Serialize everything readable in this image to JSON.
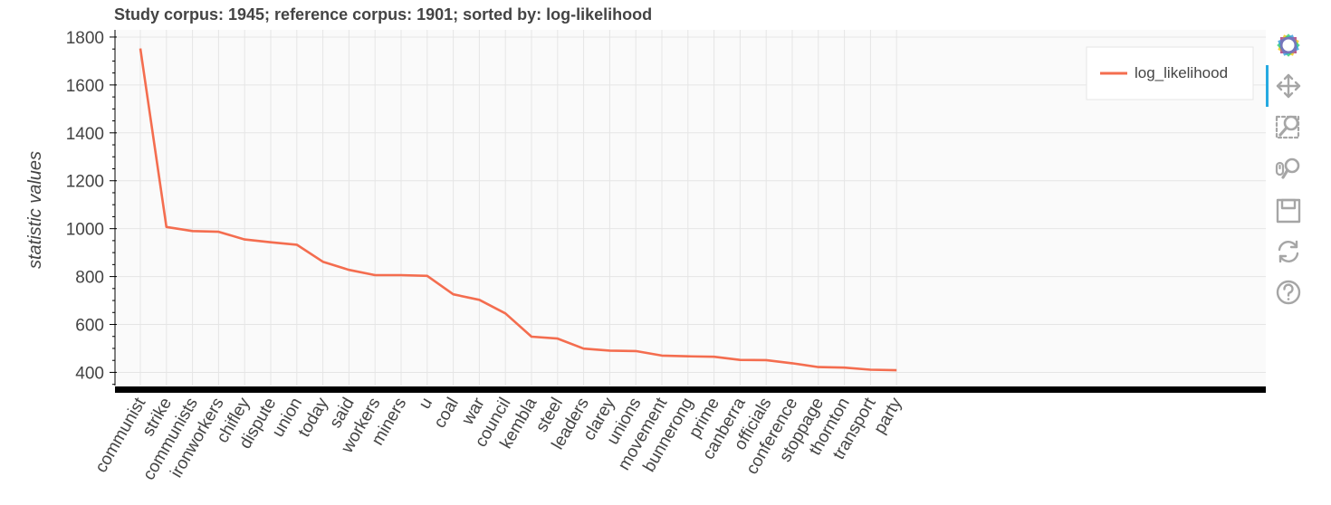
{
  "chart_data": {
    "type": "line",
    "title": "Study corpus: 1945; reference corpus: 1901; sorted by: log-likelihood",
    "xlabel": "",
    "ylabel": "statistic values",
    "ylim": [
      345,
      1830
    ],
    "yticks": [
      400,
      600,
      800,
      1000,
      1200,
      1400,
      1600,
      1800
    ],
    "grid": true,
    "legend_position": "top-right",
    "categories": [
      "communist",
      "strike",
      "communists",
      "ironworkers",
      "chifley",
      "dispute",
      "union",
      "today",
      "said",
      "workers",
      "miners",
      "u",
      "coal",
      "war",
      "council",
      "kembla",
      "steel",
      "leaders",
      "clarey",
      "unions",
      "movement",
      "bunnerong",
      "prime",
      "canberra",
      "officials",
      "conference",
      "stoppage",
      "thornton",
      "transport",
      "party"
    ],
    "series": [
      {
        "name": "log_likelihood",
        "color": "#f46d4f",
        "values": [
          1752,
          1007,
          990,
          987,
          955,
          943,
          933,
          862,
          828,
          806,
          806,
          803,
          726,
          703,
          646,
          549,
          541,
          499,
          491,
          489,
          470,
          467,
          465,
          452,
          451,
          438,
          422,
          420,
          411,
          409
        ]
      }
    ]
  },
  "toolbar": {
    "tools": [
      {
        "icon": "bokeh-logo-icon",
        "interactable": false
      },
      {
        "icon": "pan-icon",
        "interactable": true,
        "active": true
      },
      {
        "icon": "box-zoom-icon",
        "interactable": true
      },
      {
        "icon": "wheel-zoom-icon",
        "interactable": true
      },
      {
        "icon": "save-icon",
        "interactable": true
      },
      {
        "icon": "reset-icon",
        "interactable": true
      },
      {
        "icon": "help-icon",
        "interactable": true
      }
    ]
  }
}
